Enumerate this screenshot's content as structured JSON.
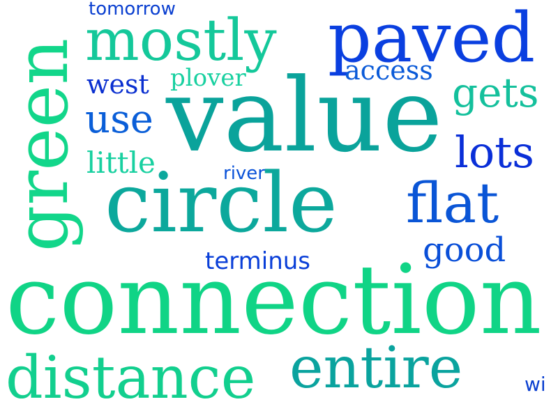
{
  "words": [
    {
      "text": "value",
      "color": "#0aa39b"
    },
    {
      "text": "connection",
      "color": "#10d486"
    },
    {
      "text": "circle",
      "color": "#0ca89c"
    },
    {
      "text": "green",
      "color": "#12d68a"
    },
    {
      "text": "paved",
      "color": "#0a3fe0"
    },
    {
      "text": "mostly",
      "color": "#14c89a"
    },
    {
      "text": "distance",
      "color": "#12cf8e"
    },
    {
      "text": "entire",
      "color": "#0aa39e"
    },
    {
      "text": "flat",
      "color": "#0a55d6"
    },
    {
      "text": "lots",
      "color": "#0a2fd8"
    },
    {
      "text": "gets",
      "color": "#14c09c"
    },
    {
      "text": "use",
      "color": "#0a5ed8"
    },
    {
      "text": "access",
      "color": "#0a5ad8"
    },
    {
      "text": "west",
      "color": "#0a2fd0"
    },
    {
      "text": "plover",
      "color": "#18d0a0"
    },
    {
      "text": "little",
      "color": "#18d0a0"
    },
    {
      "text": "good",
      "color": "#0a4fd8"
    },
    {
      "text": "tomorrow",
      "color": "#0a3fd0"
    },
    {
      "text": "river",
      "color": "#0a52d8"
    },
    {
      "text": "terminus",
      "color": "#0a3fd8"
    },
    {
      "text": "wi",
      "color": "#0a3fd0"
    }
  ]
}
